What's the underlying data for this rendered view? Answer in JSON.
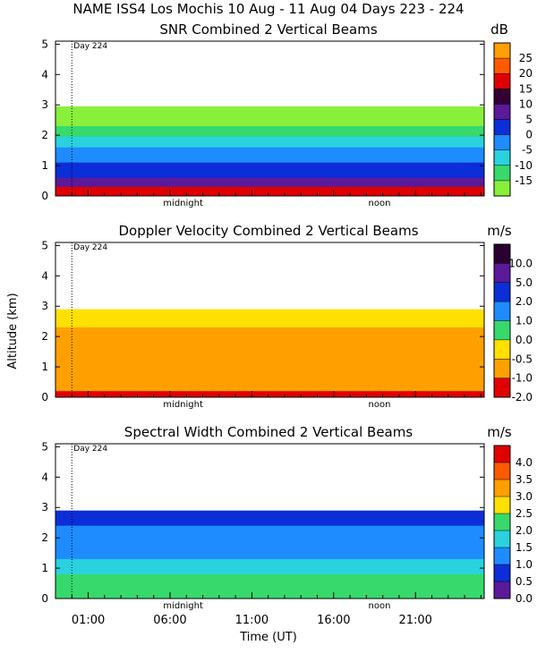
{
  "chart_data": {
    "type": "heatmap",
    "main_title": "NAME ISS4 Los Mochis  10 Aug - 11 Aug 04 Days 223 - 224",
    "y_label": "Altitude (km)",
    "x_label": "Time (UT)",
    "x_ticks": [
      "01:00",
      "06:00",
      "11:00",
      "16:00",
      "21:00"
    ],
    "x_ticks_hours": [
      1,
      6,
      11,
      16,
      21
    ],
    "x_range_hours": [
      -1,
      25.2
    ],
    "y_ticks": [
      0,
      1,
      2,
      3,
      4,
      5
    ],
    "y_range_km": [
      0,
      5.1
    ],
    "day_marker": {
      "label": "Day 224",
      "hour": 0
    },
    "time_annotations": [
      {
        "label": "midnight",
        "hour": 6.8
      },
      {
        "label": "noon",
        "hour": 18.8
      }
    ],
    "panels": [
      {
        "title": "SNR Combined 2 Vertical Beams",
        "units": "dB",
        "colorbar_labels": [
          "25",
          "20",
          "15",
          "10",
          "5",
          "0",
          "-5",
          "-10",
          "-15"
        ],
        "colorbar_colors": [
          "#ffa000",
          "#ff5a00",
          "#e00000",
          "#330033",
          "#5a1a9a",
          "#0b2ed6",
          "#1e8cff",
          "#2ad2e0",
          "#37d96c",
          "#88f03a"
        ],
        "profile": [
          {
            "level": -15,
            "top_km": 2.95
          },
          {
            "level": -10,
            "top_km": 2.3
          },
          {
            "level": -5,
            "top_km": 1.95
          },
          {
            "level": 0,
            "top_km": 1.6
          },
          {
            "level": 5,
            "top_km": 1.1
          },
          {
            "level": 10,
            "top_km": 0.6
          },
          {
            "level": 20,
            "top_km": 0.3
          }
        ]
      },
      {
        "title": "Doppler Velocity Combined 2 Vertical Beams",
        "units": "m/s",
        "colorbar_labels": [
          "10.0",
          "5.0",
          "2.0",
          "1.0",
          "0.0",
          "-0.5",
          "-1.0",
          "-2.0"
        ],
        "colorbar_colors": [
          "#2a0030",
          "#5a1a9a",
          "#0b2ed6",
          "#1e8cff",
          "#37d96c",
          "#ffe000",
          "#ffa000",
          "#e00000"
        ],
        "profile": [
          {
            "level": 0.0,
            "top_km": 2.9
          },
          {
            "level": -0.5,
            "top_km": 2.3
          },
          {
            "level": -1.0,
            "top_km": 0.2
          }
        ]
      },
      {
        "title": "Spectral Width Combined 2 Vertical Beams",
        "units": "m/s",
        "colorbar_labels": [
          "4.0",
          "3.5",
          "3.0",
          "2.5",
          "2.0",
          "1.5",
          "1.0",
          "0.5",
          "0.0"
        ],
        "colorbar_colors": [
          "#e00000",
          "#ff5a00",
          "#ffa000",
          "#ffe000",
          "#37d96c",
          "#2ad2e0",
          "#1e8cff",
          "#0b2ed6",
          "#5a1a9a"
        ],
        "profile": [
          {
            "level": 1.0,
            "top_km": 2.9
          },
          {
            "level": 1.5,
            "top_km": 2.4
          },
          {
            "level": 2.0,
            "top_km": 1.3
          },
          {
            "level": 2.5,
            "top_km": 0.8
          }
        ]
      }
    ]
  }
}
